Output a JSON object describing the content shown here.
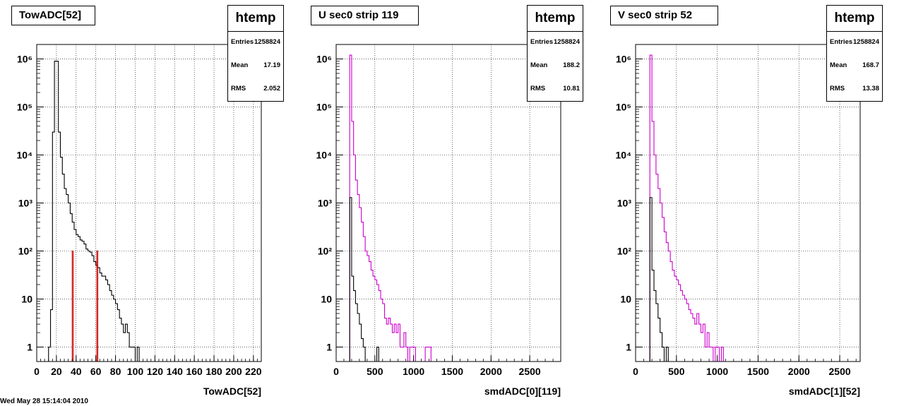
{
  "chart_data": [
    {
      "type": "histogram",
      "title": "TowADC[52]",
      "xlabel": "TowADC[52]",
      "ylabel": "",
      "log_y": true,
      "grid": true,
      "xlim": [
        0,
        228
      ],
      "ylim": [
        0.5,
        2000000
      ],
      "xticks": [
        0,
        20,
        40,
        60,
        80,
        100,
        120,
        140,
        160,
        180,
        200,
        220
      ],
      "xtick_labels": [
        "0",
        "20",
        "40",
        "60",
        "80",
        "100",
        "120",
        "140",
        "160",
        "180",
        "200",
        "220"
      ],
      "stats": {
        "name": "htemp",
        "entries_label": "Entries",
        "entries": "1258824",
        "mean_label": "Mean",
        "mean": "17.19",
        "rms_label": "RMS",
        "rms": "2.052"
      },
      "series": [
        {
          "color": "#000000",
          "bin_width": 2,
          "x_start": 12,
          "values": [
            1,
            6,
            30000,
            900000,
            900000,
            30000,
            9000,
            4000,
            2000,
            1500,
            1000,
            600,
            400,
            280,
            220,
            200,
            170,
            160,
            140,
            110,
            100,
            95,
            80,
            60,
            50,
            45,
            35,
            30,
            30,
            25,
            20,
            15,
            12,
            10,
            8,
            6,
            4,
            3,
            2,
            3,
            2,
            1,
            1,
            1,
            0.5,
            1
          ]
        },
        {
          "color": "#cc0000",
          "bin_width": 1,
          "x_start": 36,
          "values": [
            100,
            0.5,
            0.5,
            0.5,
            0.5,
            0.5,
            0.5,
            0.5,
            0.5,
            0.5,
            0.5,
            0.5,
            0.5,
            0.5,
            0.5,
            0.5,
            0.5,
            0.5,
            0.5,
            0.5,
            0.5,
            0.5,
            0.5,
            0.5,
            0.5,
            100
          ]
        }
      ]
    },
    {
      "type": "histogram",
      "title": "U sec0 strip 119",
      "xlabel": "smdADC[0][119]",
      "ylabel": "",
      "log_y": true,
      "grid": true,
      "xlim": [
        0,
        2900
      ],
      "ylim": [
        0.5,
        2000000
      ],
      "xticks": [
        0,
        500,
        1000,
        1500,
        2000,
        2500
      ],
      "xtick_labels": [
        "0",
        "500",
        "1000",
        "1500",
        "2000",
        "2500"
      ],
      "stats": {
        "name": "htemp",
        "entries_label": "Entries",
        "entries": "1258824",
        "mean_label": "Mean",
        "mean": "188.2",
        "rms_label": "RMS",
        "rms": "10.81"
      },
      "series": [
        {
          "color": "#cc00cc",
          "bin_width": 25,
          "x_start": 175,
          "values": [
            1200000,
            50000,
            10000,
            3000,
            1500,
            800,
            400,
            200,
            100,
            80,
            60,
            40,
            30,
            25,
            20,
            15,
            10,
            8,
            4,
            3,
            4,
            3,
            2,
            3,
            2,
            3,
            1,
            1,
            2,
            1,
            0.5,
            1,
            1,
            1,
            0.5,
            0.5,
            0.5,
            0.5,
            0.5,
            1,
            1,
            1
          ]
        },
        {
          "color": "#000000",
          "bin_width": 25,
          "x_start": 175,
          "values": [
            1300,
            30,
            15,
            8,
            5,
            3,
            1.5,
            1,
            0.5,
            0.5,
            0.5,
            0.5,
            0.5,
            0.5,
            1
          ]
        }
      ]
    },
    {
      "type": "histogram",
      "title": "V sec0 strip 52",
      "xlabel": "smdADC[1][52]",
      "ylabel": "",
      "log_y": true,
      "grid": true,
      "xlim": [
        0,
        2750
      ],
      "ylim": [
        0.5,
        2000000
      ],
      "xticks": [
        0,
        500,
        1000,
        1500,
        2000,
        2500
      ],
      "xtick_labels": [
        "0",
        "500",
        "1000",
        "1500",
        "2000",
        "2500"
      ],
      "stats": {
        "name": "htemp",
        "entries_label": "Entries",
        "entries": "1258824",
        "mean_label": "Mean",
        "mean": "168.7",
        "rms_label": "RMS",
        "rms": "13.38"
      },
      "series": [
        {
          "color": "#cc00cc",
          "bin_width": 25,
          "x_start": 175,
          "values": [
            1200000,
            50000,
            10000,
            4000,
            2000,
            1000,
            500,
            250,
            150,
            100,
            60,
            40,
            30,
            25,
            20,
            15,
            12,
            10,
            8,
            6,
            5,
            4,
            3,
            5,
            3,
            2,
            3,
            1,
            2,
            1,
            1,
            0.5,
            1,
            1,
            0.5,
            1
          ]
        },
        {
          "color": "#000000",
          "bin_width": 25,
          "x_start": 175,
          "values": [
            1300,
            40,
            15,
            8,
            4,
            2,
            1,
            0.5,
            1
          ]
        }
      ]
    }
  ]
}
